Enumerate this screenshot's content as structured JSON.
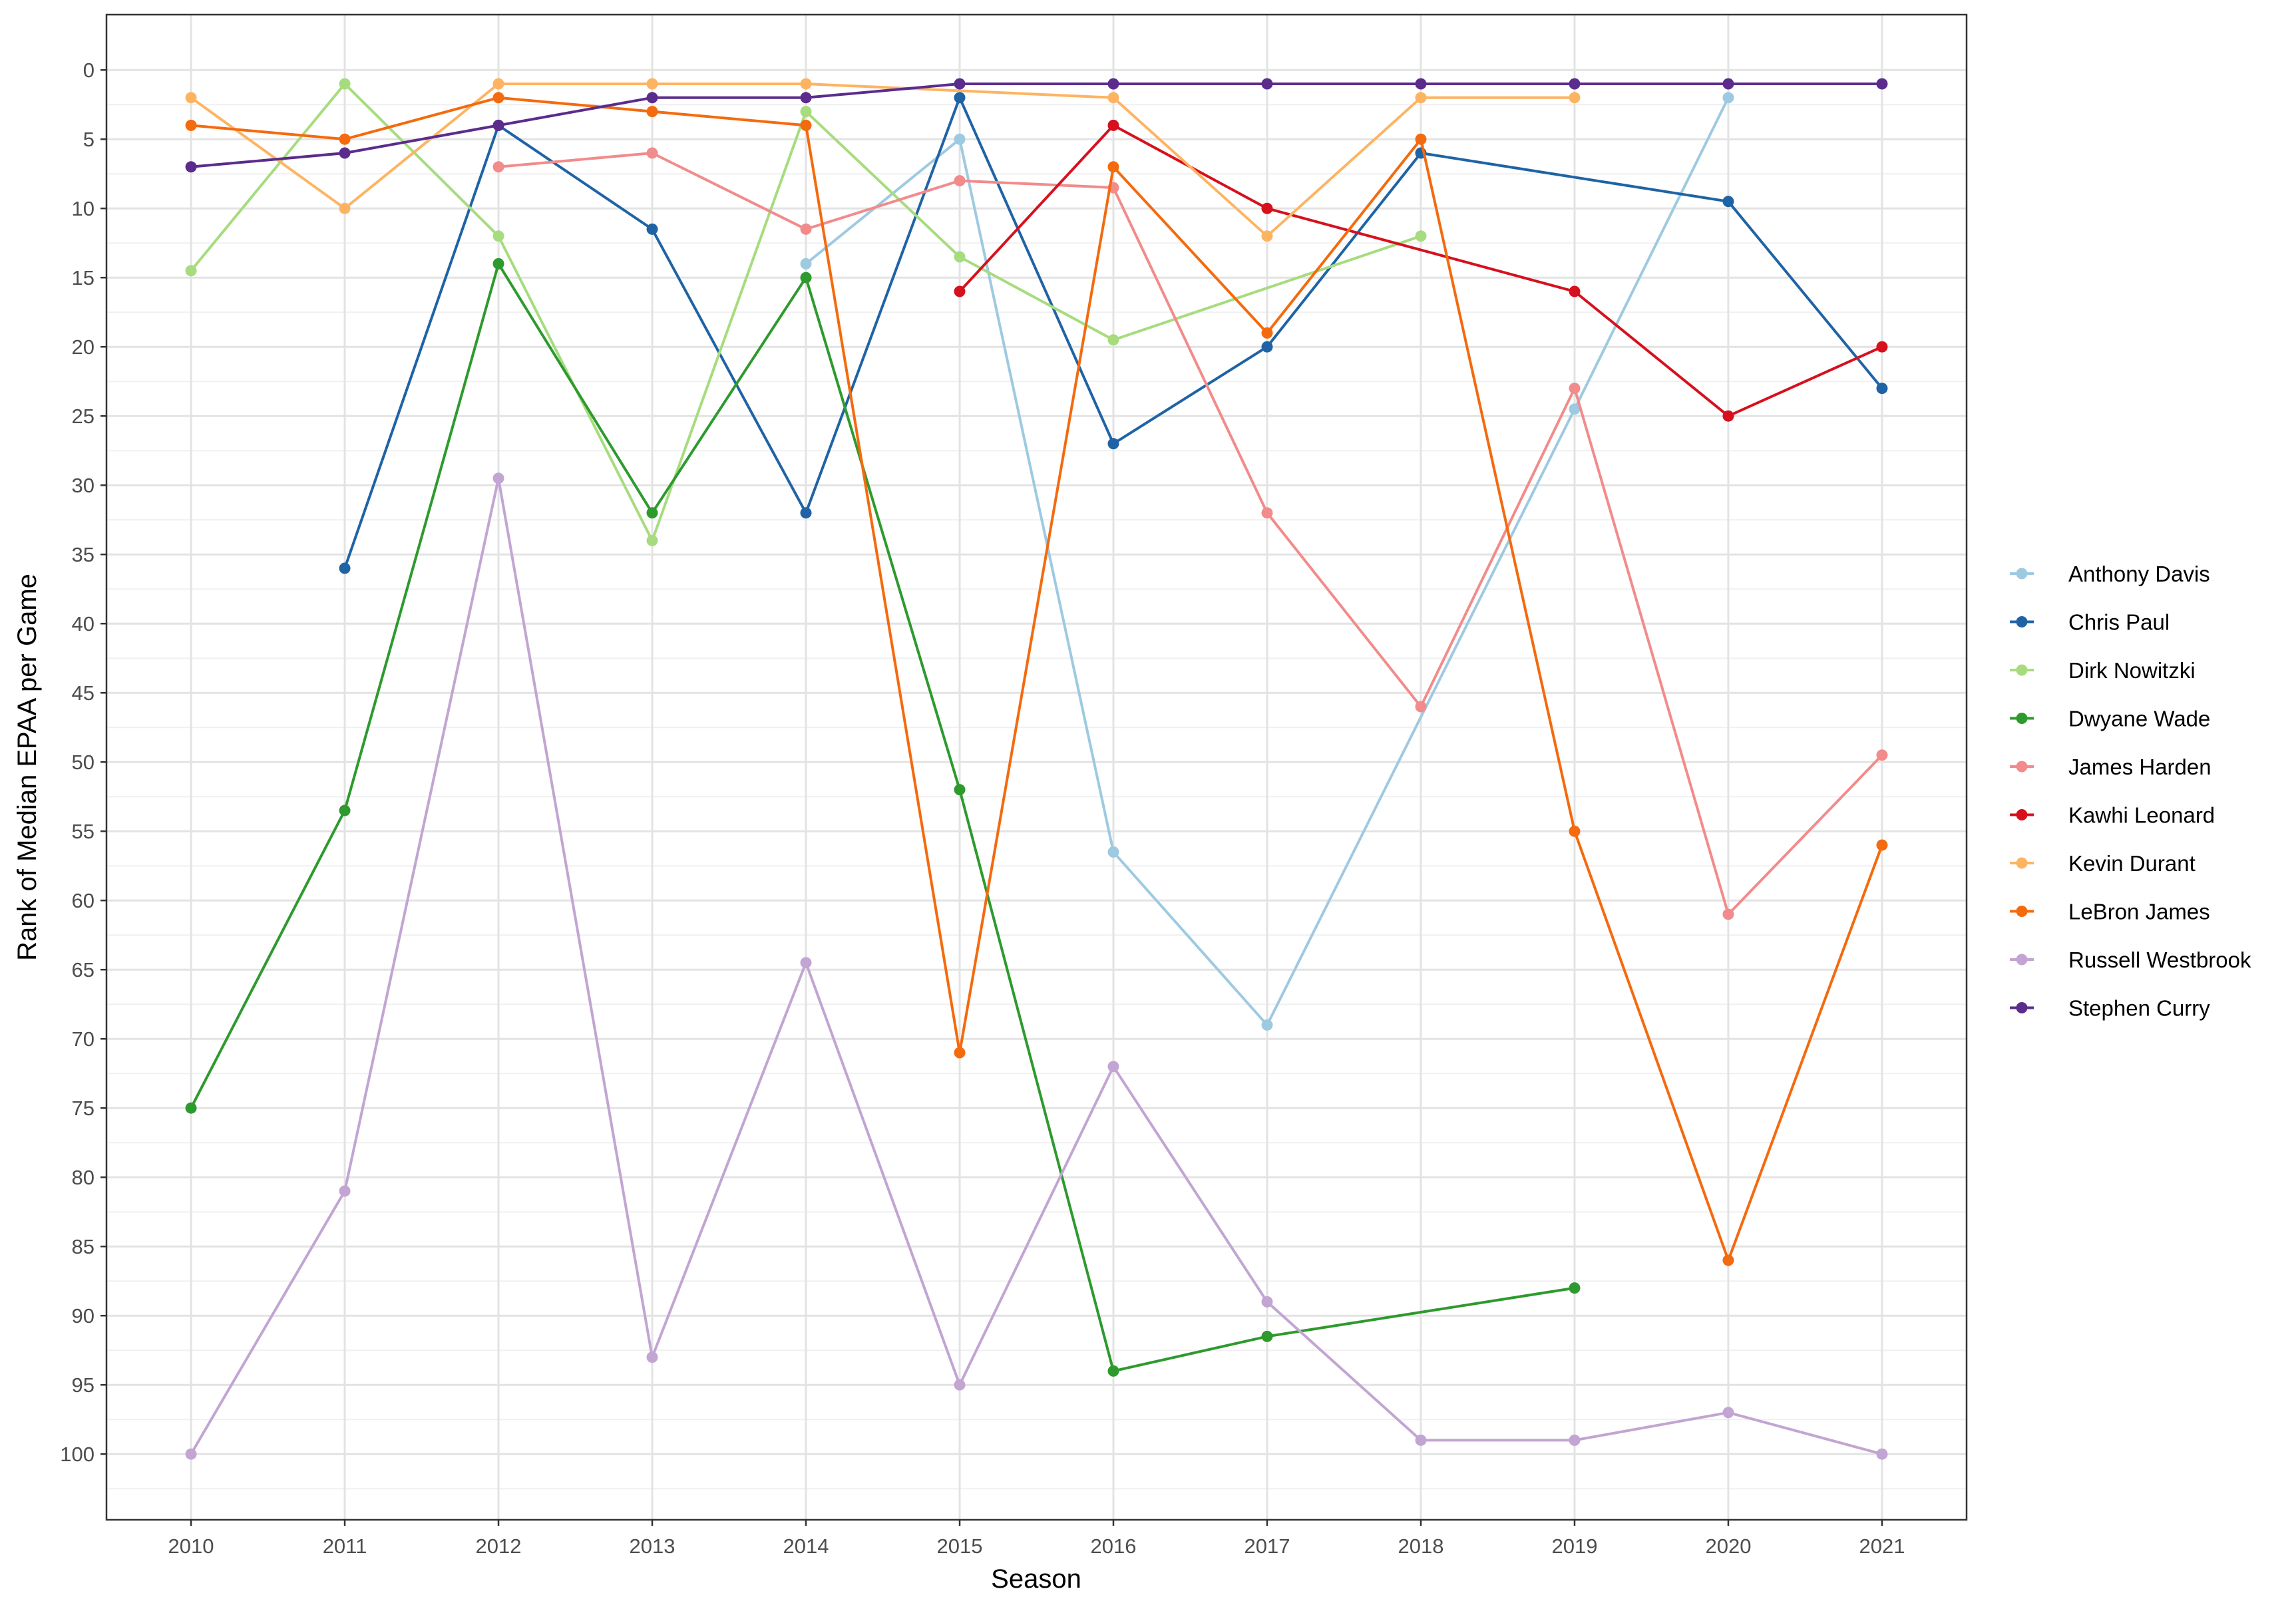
{
  "chart_data": {
    "type": "line",
    "xlabel": "Season",
    "ylabel": "Rank of Median EPAA per Game",
    "x": [
      2010,
      2011,
      2012,
      2013,
      2014,
      2015,
      2016,
      2017,
      2018,
      2019,
      2020,
      2021
    ],
    "xlim": [
      2009.45,
      2021.55
    ],
    "ylim": [
      104.75,
      -4.0
    ],
    "y_reversed": true,
    "y_ticks": [
      0,
      5,
      10,
      15,
      20,
      25,
      30,
      35,
      40,
      45,
      50,
      55,
      60,
      65,
      70,
      75,
      80,
      85,
      90,
      95,
      100
    ],
    "grid": true,
    "legend_position": "right",
    "series": [
      {
        "name": "Anthony Davis",
        "color": "#9ECAE1",
        "points": [
          [
            2014,
            14
          ],
          [
            2015,
            5
          ],
          [
            2016,
            56.5
          ],
          [
            2017,
            69
          ],
          [
            2019,
            24.5
          ],
          [
            2020,
            2
          ]
        ]
      },
      {
        "name": "Chris Paul",
        "color": "#1F63A5",
        "points": [
          [
            2011,
            36
          ],
          [
            2012,
            4
          ],
          [
            2013,
            11.5
          ],
          [
            2014,
            32
          ],
          [
            2015,
            2
          ],
          [
            2016,
            27
          ],
          [
            2017,
            20
          ],
          [
            2018,
            6
          ],
          [
            2020,
            9.5
          ],
          [
            2021,
            23
          ]
        ]
      },
      {
        "name": "Dirk Nowitzki",
        "color": "#A6DC7E",
        "points": [
          [
            2010,
            14.5
          ],
          [
            2011,
            1
          ],
          [
            2012,
            12
          ],
          [
            2013,
            34
          ],
          [
            2014,
            3
          ],
          [
            2015,
            13.5
          ],
          [
            2016,
            19.5
          ],
          [
            2018,
            12
          ]
        ]
      },
      {
        "name": "Dwyane Wade",
        "color": "#2E9A2E",
        "points": [
          [
            2010,
            75
          ],
          [
            2011,
            53.5
          ],
          [
            2012,
            14
          ],
          [
            2013,
            32
          ],
          [
            2014,
            15
          ],
          [
            2015,
            52
          ],
          [
            2016,
            94
          ],
          [
            2017,
            91.5
          ],
          [
            2019,
            88
          ]
        ]
      },
      {
        "name": "James Harden",
        "color": "#F28B8B",
        "points": [
          [
            2012,
            7
          ],
          [
            2013,
            6
          ],
          [
            2014,
            11.5
          ],
          [
            2015,
            8
          ],
          [
            2016,
            8.5
          ],
          [
            2017,
            32
          ],
          [
            2018,
            46
          ],
          [
            2019,
            23
          ],
          [
            2020,
            61
          ],
          [
            2021,
            49.5
          ]
        ]
      },
      {
        "name": "Kawhi Leonard",
        "color": "#D7101E",
        "points": [
          [
            2015,
            16
          ],
          [
            2016,
            4
          ],
          [
            2017,
            10
          ],
          [
            2019,
            16
          ],
          [
            2020,
            25
          ],
          [
            2021,
            20
          ]
        ]
      },
      {
        "name": "Kevin Durant",
        "color": "#FDB462",
        "points": [
          [
            2010,
            2
          ],
          [
            2011,
            10
          ],
          [
            2012,
            1
          ],
          [
            2013,
            1
          ],
          [
            2014,
            1
          ],
          [
            2016,
            2
          ],
          [
            2017,
            12
          ],
          [
            2018,
            2
          ],
          [
            2019,
            2
          ]
        ]
      },
      {
        "name": "LeBron James",
        "color": "#F46A0E",
        "points": [
          [
            2010,
            4
          ],
          [
            2011,
            5
          ],
          [
            2012,
            2
          ],
          [
            2013,
            3
          ],
          [
            2014,
            4
          ],
          [
            2015,
            71
          ],
          [
            2016,
            7
          ],
          [
            2017,
            19
          ],
          [
            2018,
            5
          ],
          [
            2019,
            55
          ],
          [
            2020,
            86
          ],
          [
            2021,
            56
          ]
        ]
      },
      {
        "name": "Russell Westbrook",
        "color": "#C2A5D2",
        "points": [
          [
            2010,
            100
          ],
          [
            2011,
            81
          ],
          [
            2012,
            29.5
          ],
          [
            2013,
            93
          ],
          [
            2014,
            64.5
          ],
          [
            2015,
            95
          ],
          [
            2016,
            72
          ],
          [
            2017,
            89
          ],
          [
            2018,
            99
          ],
          [
            2019,
            99
          ],
          [
            2020,
            97
          ],
          [
            2021,
            100
          ]
        ]
      },
      {
        "name": "Stephen Curry",
        "color": "#5B2C8C",
        "points": [
          [
            2010,
            7
          ],
          [
            2011,
            6
          ],
          [
            2012,
            4
          ],
          [
            2013,
            2
          ],
          [
            2014,
            2
          ],
          [
            2015,
            1
          ],
          [
            2016,
            1
          ],
          [
            2017,
            1
          ],
          [
            2018,
            1
          ],
          [
            2019,
            1
          ],
          [
            2020,
            1
          ],
          [
            2021,
            1
          ]
        ]
      }
    ]
  }
}
